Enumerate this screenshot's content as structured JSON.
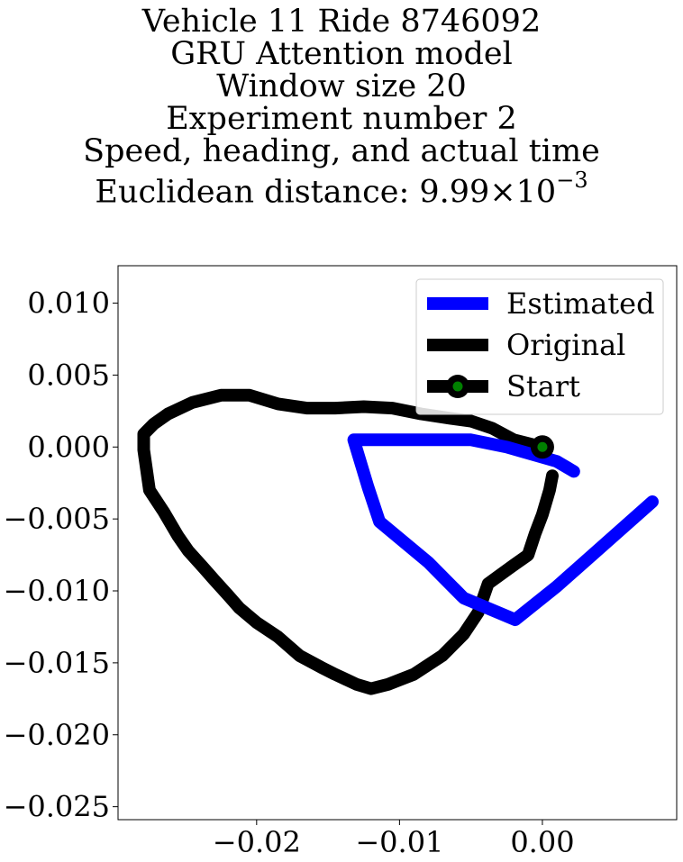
{
  "title_lines": [
    "Vehicle 11 Ride 8746092",
    "GRU Attention model",
    "Window size 20",
    "Experiment number 2",
    "Speed, heading, and actual time"
  ],
  "title_distance": {
    "prefix": "Euclidean distance: 9.99",
    "times": "×",
    "base": "10",
    "exponent": "−3"
  },
  "chart_data": {
    "type": "line",
    "xlim": [
      -0.0297,
      0.0094
    ],
    "ylim": [
      -0.0259,
      0.0126
    ],
    "xticks": [
      -0.02,
      -0.01,
      0.0
    ],
    "xtick_labels": [
      "−0.02",
      "−0.01",
      "0.00"
    ],
    "yticks": [
      0.01,
      0.005,
      0.0,
      -0.005,
      -0.01,
      -0.015,
      -0.02,
      -0.025
    ],
    "ytick_labels": [
      "0.010",
      "0.005",
      "0.000",
      "−0.005",
      "−0.010",
      "−0.015",
      "−0.020",
      "−0.025"
    ],
    "grid": false,
    "legend_position": "top-right",
    "series": [
      {
        "name": "Estimated",
        "color": "#0000ff",
        "x": [
          0.0022,
          0.001,
          -0.0025,
          -0.005,
          -0.0132,
          -0.0122,
          -0.0114,
          -0.008,
          -0.0055,
          -0.0019,
          0.001,
          0.0077
        ],
        "y": [
          -0.0017,
          -0.001,
          0.0,
          0.0005,
          0.0005,
          -0.0028,
          -0.0052,
          -0.008,
          -0.0105,
          -0.012,
          -0.0097,
          -0.0038
        ]
      },
      {
        "name": "Original",
        "color": "#000000",
        "x": [
          0.0,
          -0.002,
          -0.0035,
          -0.005,
          -0.0065,
          -0.0085,
          -0.0105,
          -0.0125,
          -0.0145,
          -0.0165,
          -0.0185,
          -0.0205,
          -0.0225,
          -0.0245,
          -0.0262,
          -0.0272,
          -0.0279,
          -0.0279,
          -0.0275,
          -0.0265,
          -0.0255,
          -0.0248,
          -0.0238,
          -0.023,
          -0.022,
          -0.0212,
          -0.02,
          -0.0185,
          -0.017,
          -0.0155,
          -0.0145,
          -0.013,
          -0.012,
          -0.0108,
          -0.009,
          -0.007,
          -0.0055,
          -0.0045,
          -0.0038,
          -0.002,
          -0.001,
          -0.0005,
          0.0,
          0.0005,
          0.0007
        ],
        "y": [
          0.0,
          0.0005,
          0.0013,
          0.0018,
          0.002,
          0.0023,
          0.0027,
          0.0028,
          0.0027,
          0.0027,
          0.003,
          0.0036,
          0.0036,
          0.0031,
          0.0023,
          0.0016,
          0.0009,
          -0.0002,
          -0.003,
          -0.0045,
          -0.0062,
          -0.0072,
          -0.0083,
          -0.0092,
          -0.0103,
          -0.0112,
          -0.0122,
          -0.0132,
          -0.0145,
          -0.0153,
          -0.0158,
          -0.0165,
          -0.0168,
          -0.0165,
          -0.0158,
          -0.0145,
          -0.013,
          -0.0115,
          -0.0095,
          -0.0082,
          -0.0075,
          -0.006,
          -0.0047,
          -0.003,
          -0.002
        ]
      },
      {
        "name": "Start",
        "color": "#008000",
        "edge_color": "#000000",
        "x": [
          0.0
        ],
        "y": [
          0.0
        ]
      }
    ]
  }
}
